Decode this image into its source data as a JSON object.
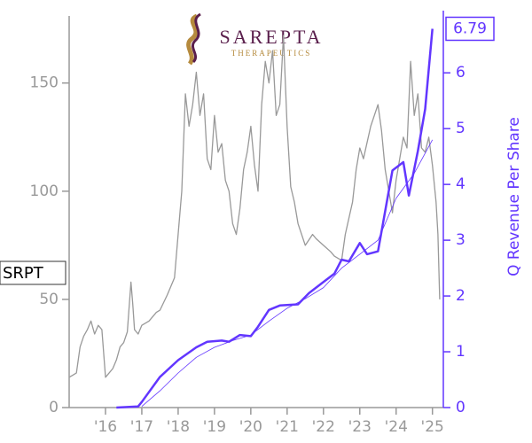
{
  "chart_data": {
    "type": "line",
    "logo_name": "SAREPTA",
    "logo_tagline": "THERAPEUTICS",
    "y2_label": "Q Revenue Per Share",
    "xlim": [
      2015.0,
      2025.3
    ],
    "xticks": [
      {
        "value": 2016,
        "label": "'16"
      },
      {
        "value": 2017,
        "label": "'17"
      },
      {
        "value": 2018,
        "label": "'18"
      },
      {
        "value": 2019,
        "label": "'19"
      },
      {
        "value": 2020,
        "label": "'20"
      },
      {
        "value": 2021,
        "label": "'21"
      },
      {
        "value": 2022,
        "label": "'22"
      },
      {
        "value": 2023,
        "label": "'23"
      },
      {
        "value": 2024,
        "label": "'24"
      },
      {
        "value": 2025,
        "label": "'25"
      }
    ],
    "ylim": [
      0,
      181
    ],
    "yticks": [
      0,
      50,
      100,
      150
    ],
    "y2lim": [
      0,
      7.02
    ],
    "y2ticks": [
      0,
      1,
      2,
      3,
      4,
      5,
      6
    ],
    "series": [
      {
        "name": "SRPT",
        "color": "#999999",
        "width": 1.3,
        "x": [
          2015.0,
          2015.1,
          2015.2,
          2015.3,
          2015.4,
          2015.5,
          2015.6,
          2015.7,
          2015.8,
          2015.9,
          2016.0,
          2016.1,
          2016.2,
          2016.3,
          2016.4,
          2016.5,
          2016.6,
          2016.7,
          2016.75,
          2016.8,
          2016.9,
          2017.0,
          2017.2,
          2017.4,
          2017.5,
          2017.7,
          2017.9,
          2018.0,
          2018.1,
          2018.2,
          2018.3,
          2018.4,
          2018.5,
          2018.6,
          2018.7,
          2018.8,
          2018.9,
          2019.0,
          2019.1,
          2019.2,
          2019.3,
          2019.4,
          2019.5,
          2019.6,
          2019.7,
          2019.8,
          2019.9,
          2020.0,
          2020.1,
          2020.2,
          2020.3,
          2020.4,
          2020.5,
          2020.6,
          2020.7,
          2020.8,
          2020.9,
          2021.0,
          2021.1,
          2021.2,
          2021.3,
          2021.5,
          2021.7,
          2021.8,
          2022.0,
          2022.2,
          2022.3,
          2022.5,
          2022.6,
          2022.8,
          2022.9,
          2023.0,
          2023.1,
          2023.3,
          2023.4,
          2023.5,
          2023.6,
          2023.7,
          2023.8,
          2023.9,
          2024.0,
          2024.1,
          2024.2,
          2024.3,
          2024.4,
          2024.5,
          2024.6,
          2024.7,
          2024.8,
          2024.9,
          2025.0,
          2025.1,
          2025.15,
          2025.2
        ],
        "values": [
          14,
          15,
          16,
          28,
          33,
          36,
          40,
          34,
          38,
          36,
          14,
          16,
          18,
          22,
          28,
          30,
          35,
          58,
          48,
          36,
          34,
          38,
          40,
          44,
          45,
          52,
          60,
          80,
          100,
          145,
          130,
          140,
          155,
          135,
          145,
          115,
          110,
          135,
          118,
          122,
          105,
          100,
          85,
          80,
          92,
          110,
          118,
          130,
          112,
          100,
          140,
          160,
          150,
          165,
          135,
          140,
          172,
          130,
          102,
          95,
          85,
          75,
          80,
          78,
          75,
          72,
          70,
          68,
          80,
          95,
          110,
          120,
          115,
          130,
          135,
          140,
          128,
          110,
          100,
          90,
          105,
          115,
          125,
          120,
          160,
          135,
          145,
          120,
          118,
          125,
          112,
          95,
          80,
          50
        ]
      },
      {
        "name": "Q Revenue Per Share",
        "color": "#6236ff",
        "width": 2.5,
        "axis": "y2",
        "x": [
          2016.3,
          2016.9,
          2017.0,
          2017.5,
          2018.0,
          2018.5,
          2018.8,
          2019.2,
          2019.4,
          2019.7,
          2020.0,
          2020.2,
          2020.5,
          2020.8,
          2021.3,
          2021.6,
          2022.0,
          2022.3,
          2022.5,
          2022.7,
          2023.0,
          2023.2,
          2023.5,
          2023.9,
          2024.2,
          2024.35,
          2024.6,
          2024.8,
          2025.0
        ],
        "values": [
          0,
          0.02,
          0.1,
          0.55,
          0.85,
          1.08,
          1.18,
          1.2,
          1.18,
          1.3,
          1.28,
          1.45,
          1.75,
          1.83,
          1.85,
          2.05,
          2.25,
          2.4,
          2.65,
          2.62,
          2.95,
          2.75,
          2.8,
          4.25,
          4.4,
          3.8,
          4.6,
          5.35,
          6.79
        ]
      },
      {
        "color": "#6236ff",
        "width": 0.8,
        "axis": "y2",
        "x": [
          2017.0,
          2017.5,
          2018.0,
          2018.5,
          2019.0,
          2019.5,
          2020.0,
          2020.5,
          2021.0,
          2021.5,
          2022.0,
          2022.5,
          2023.0,
          2023.5,
          2024.0,
          2024.5,
          2025.0
        ],
        "values": [
          0.02,
          0.3,
          0.62,
          0.9,
          1.08,
          1.2,
          1.3,
          1.55,
          1.78,
          1.95,
          2.15,
          2.5,
          2.75,
          3.0,
          3.75,
          4.2,
          4.8
        ]
      }
    ]
  }
}
